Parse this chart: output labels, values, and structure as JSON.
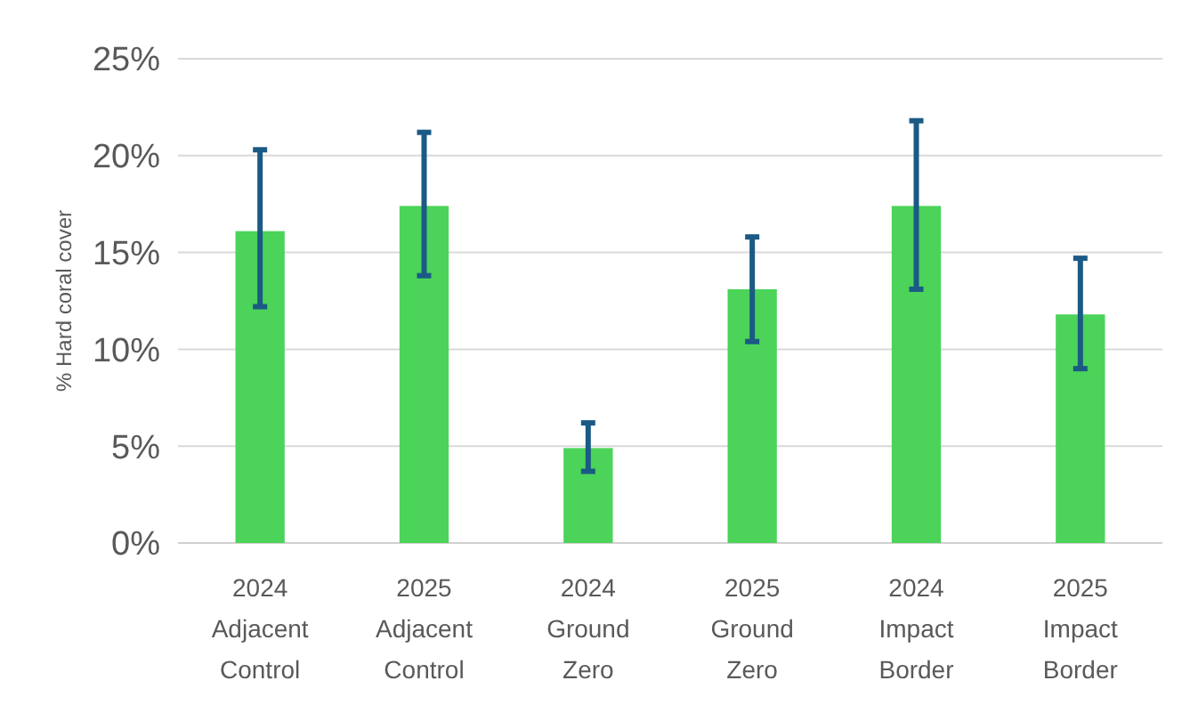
{
  "chart_data": {
    "type": "bar",
    "ylabel": "% Hard coral cover",
    "categories": [
      "2024\nAdjacent\nControl",
      "2025\nAdjacent\nControl",
      "2024\nGround\nZero",
      "2025\nGround\nZero",
      "2024\nImpact\nBorder",
      "2025\nImpact\nBorder"
    ],
    "values": [
      16.1,
      17.4,
      4.9,
      13.1,
      17.4,
      11.8
    ],
    "errors": [
      [
        12.2,
        20.3
      ],
      [
        13.8,
        21.2
      ],
      [
        3.7,
        6.2
      ],
      [
        10.4,
        15.8
      ],
      [
        13.1,
        21.8
      ],
      [
        9.0,
        14.7
      ]
    ],
    "color": "#4cd35a",
    "ylim": [
      0,
      25
    ],
    "yticks": [
      {
        "value": 0,
        "label": "0%"
      },
      {
        "value": 5,
        "label": "5%"
      },
      {
        "value": 10,
        "label": "10%"
      },
      {
        "value": 15,
        "label": "15%"
      },
      {
        "value": 20,
        "label": "20%"
      },
      {
        "value": 25,
        "label": "25%"
      }
    ],
    "grid": "y"
  }
}
